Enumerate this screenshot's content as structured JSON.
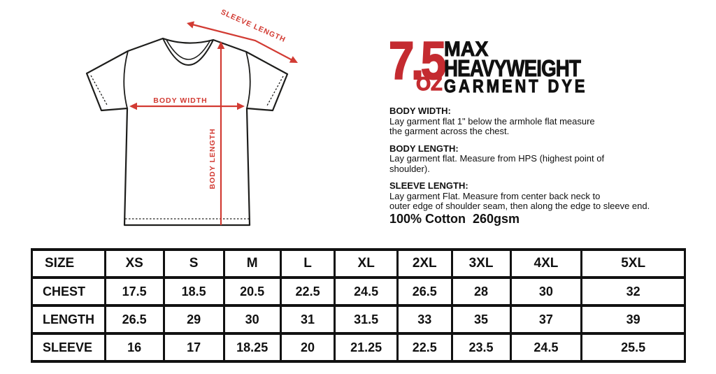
{
  "badge": {
    "weight": "7.5",
    "unit": "OZ",
    "line1": "MAX",
    "line2": "HEAVYWEIGHT",
    "line3": "GARMENT DYE"
  },
  "measurement_guide": [
    {
      "heading": "BODY WIDTH:",
      "lines": [
        "Lay garment flat 1\" below the armhole flat measure",
        "the garment across the chest."
      ]
    },
    {
      "heading": "BODY LENGTH:",
      "lines": [
        "Lay garment flat. Measure from HPS (highest point of",
        "shoulder)."
      ]
    },
    {
      "heading": "SLEEVE LENGTH:",
      "lines": [
        "Lay garment Flat. Measure from center back neck to",
        "outer edge of shoulder seam, then along the edge to sleeve end."
      ]
    }
  ],
  "fabric": "100% Cotton  260gsm",
  "diagram": {
    "labels": {
      "sleeve_length": "SLEEVE LENGTH",
      "body_width": "BODY WIDTH",
      "body_length": "BODY LENGTH"
    }
  },
  "size_chart": {
    "type": "table",
    "columns": [
      "SIZE",
      "XS",
      "S",
      "M",
      "L",
      "XL",
      "2XL",
      "3XL",
      "4XL",
      "5XL"
    ],
    "rows": [
      {
        "label": "CHEST",
        "values": [
          "17.5",
          "18.5",
          "20.5",
          "22.5",
          "24.5",
          "26.5",
          "28",
          "30",
          "32"
        ]
      },
      {
        "label": "LENGTH",
        "values": [
          "26.5",
          "29",
          "30",
          "31",
          "31.5",
          "33",
          "35",
          "37",
          "39"
        ]
      },
      {
        "label": "SLEEVE",
        "values": [
          "16",
          "17",
          "18.25",
          "20",
          "21.25",
          "22.5",
          "23.5",
          "24.5",
          "25.5"
        ]
      }
    ]
  },
  "colors": {
    "accent_red": "#c42b30",
    "diagram_red": "#d23b33",
    "ink": "#111111"
  }
}
